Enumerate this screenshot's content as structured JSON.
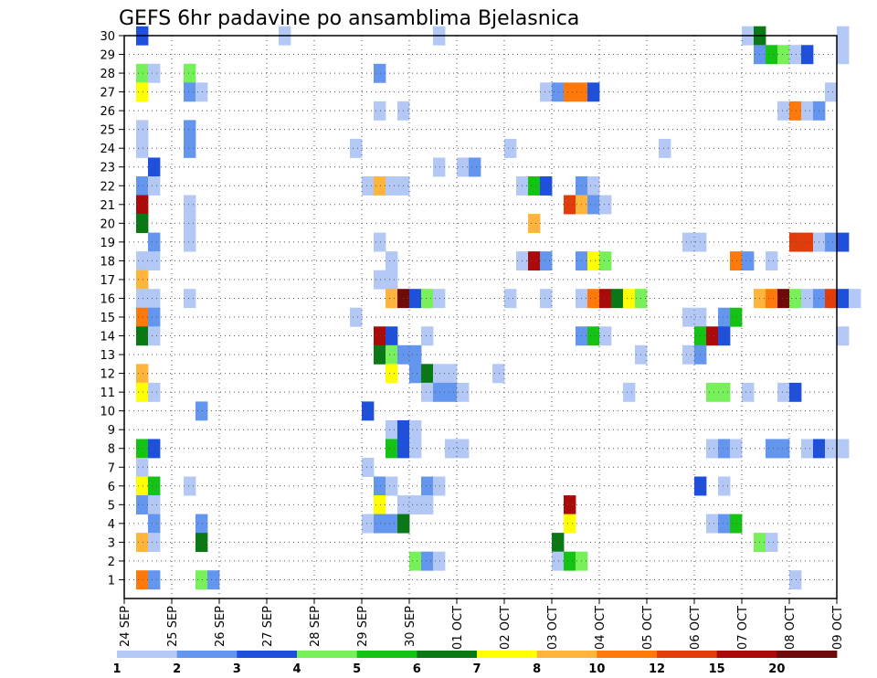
{
  "chart_data": {
    "type": "heatmap",
    "title": "GEFS 6hr padavine po ansamblima Bjelasnica",
    "x_tick_labels": [
      "24 SEP",
      "25 SEP",
      "26 SEP",
      "27 SEP",
      "28 SEP",
      "29 SEP",
      "30 SEP",
      "01 OCT",
      "02 OCT",
      "03 OCT",
      "04 OCT",
      "05 OCT",
      "06 OCT",
      "07 OCT",
      "08 OCT",
      "09 OCT"
    ],
    "y_tick_labels": [
      "1",
      "2",
      "3",
      "4",
      "5",
      "6",
      "7",
      "8",
      "9",
      "10",
      "11",
      "12",
      "13",
      "14",
      "15",
      "16",
      "17",
      "18",
      "19",
      "20",
      "21",
      "22",
      "23",
      "24",
      "25",
      "26",
      "27",
      "28",
      "29",
      "30"
    ],
    "y_range": [
      0,
      30
    ],
    "steps_per_day": 4,
    "grid": true,
    "colorbar": {
      "levels": [
        "1",
        "2",
        "3",
        "4",
        "5",
        "6",
        "7",
        "8",
        "10",
        "12",
        "15",
        "20"
      ],
      "colors": [
        "#b4c8f5",
        "#6496f0",
        "#1e50dc",
        "#78f05a",
        "#14c314",
        "#0a7814",
        "#ffff00",
        "#ffb43c",
        "#ff780a",
        "#e13c0a",
        "#aa0a0a",
        "#6e0a0a"
      ]
    },
    "cells_legend": "each cell: [member, 6h-step index from 24 SEP 00, color class 0-11]",
    "cells": [
      [
        30,
        1,
        2
      ],
      [
        30,
        13,
        0
      ],
      [
        30,
        26,
        0
      ],
      [
        30,
        52,
        0
      ],
      [
        30,
        53,
        5
      ],
      [
        30,
        60,
        0
      ],
      [
        29,
        53,
        1
      ],
      [
        29,
        54,
        4
      ],
      [
        29,
        55,
        3
      ],
      [
        29,
        56,
        0
      ],
      [
        29,
        57,
        2
      ],
      [
        29,
        60,
        0
      ],
      [
        28,
        1,
        3
      ],
      [
        28,
        2,
        0
      ],
      [
        28,
        5,
        3
      ],
      [
        28,
        21,
        1
      ],
      [
        27,
        1,
        6
      ],
      [
        27,
        5,
        1
      ],
      [
        27,
        6,
        0
      ],
      [
        27,
        35,
        0
      ],
      [
        27,
        36,
        1
      ],
      [
        27,
        37,
        8
      ],
      [
        27,
        38,
        8
      ],
      [
        27,
        39,
        2
      ],
      [
        27,
        59,
        0
      ],
      [
        26,
        21,
        0
      ],
      [
        26,
        23,
        0
      ],
      [
        26,
        55,
        0
      ],
      [
        26,
        56,
        8
      ],
      [
        26,
        57,
        0
      ],
      [
        26,
        58,
        1
      ],
      [
        25,
        1,
        0
      ],
      [
        25,
        5,
        1
      ],
      [
        24,
        1,
        0
      ],
      [
        24,
        5,
        1
      ],
      [
        24,
        19,
        0
      ],
      [
        24,
        32,
        0
      ],
      [
        24,
        45,
        0
      ],
      [
        23,
        2,
        2
      ],
      [
        23,
        26,
        0
      ],
      [
        23,
        28,
        0
      ],
      [
        23,
        29,
        1
      ],
      [
        22,
        1,
        1
      ],
      [
        22,
        2,
        0
      ],
      [
        22,
        20,
        0
      ],
      [
        22,
        21,
        7
      ],
      [
        22,
        22,
        0
      ],
      [
        22,
        23,
        0
      ],
      [
        22,
        33,
        0
      ],
      [
        22,
        34,
        4
      ],
      [
        22,
        35,
        2
      ],
      [
        22,
        38,
        1
      ],
      [
        22,
        39,
        0
      ],
      [
        21,
        1,
        10
      ],
      [
        21,
        5,
        0
      ],
      [
        21,
        37,
        9
      ],
      [
        21,
        38,
        7
      ],
      [
        21,
        39,
        1
      ],
      [
        21,
        40,
        0
      ],
      [
        20,
        1,
        5
      ],
      [
        20,
        5,
        0
      ],
      [
        20,
        34,
        7
      ],
      [
        19,
        2,
        1
      ],
      [
        19,
        5,
        0
      ],
      [
        19,
        21,
        0
      ],
      [
        19,
        47,
        0
      ],
      [
        19,
        48,
        0
      ],
      [
        19,
        56,
        9
      ],
      [
        19,
        57,
        9
      ],
      [
        19,
        58,
        0
      ],
      [
        19,
        59,
        1
      ],
      [
        19,
        60,
        2
      ],
      [
        18,
        1,
        0
      ],
      [
        18,
        2,
        0
      ],
      [
        18,
        22,
        0
      ],
      [
        18,
        33,
        0
      ],
      [
        18,
        34,
        10
      ],
      [
        18,
        35,
        1
      ],
      [
        18,
        38,
        1
      ],
      [
        18,
        39,
        6
      ],
      [
        18,
        40,
        3
      ],
      [
        18,
        51,
        8
      ],
      [
        18,
        52,
        1
      ],
      [
        18,
        54,
        0
      ],
      [
        17,
        1,
        7
      ],
      [
        17,
        21,
        0
      ],
      [
        17,
        22,
        0
      ],
      [
        16,
        1,
        0
      ],
      [
        16,
        2,
        0
      ],
      [
        16,
        5,
        0
      ],
      [
        16,
        22,
        7
      ],
      [
        16,
        23,
        11
      ],
      [
        16,
        24,
        2
      ],
      [
        16,
        25,
        3
      ],
      [
        16,
        26,
        0
      ],
      [
        16,
        32,
        0
      ],
      [
        16,
        35,
        0
      ],
      [
        16,
        38,
        0
      ],
      [
        16,
        39,
        8
      ],
      [
        16,
        40,
        10
      ],
      [
        16,
        41,
        5
      ],
      [
        16,
        42,
        6
      ],
      [
        16,
        43,
        3
      ],
      [
        16,
        53,
        7
      ],
      [
        16,
        54,
        8
      ],
      [
        16,
        55,
        11
      ],
      [
        16,
        56,
        3
      ],
      [
        16,
        57,
        0
      ],
      [
        16,
        58,
        1
      ],
      [
        16,
        59,
        9
      ],
      [
        16,
        60,
        2
      ],
      [
        16,
        61,
        0
      ],
      [
        15,
        1,
        8
      ],
      [
        15,
        2,
        1
      ],
      [
        15,
        19,
        0
      ],
      [
        15,
        47,
        0
      ],
      [
        15,
        48,
        0
      ],
      [
        15,
        50,
        1
      ],
      [
        15,
        51,
        4
      ],
      [
        14,
        1,
        5
      ],
      [
        14,
        2,
        0
      ],
      [
        14,
        21,
        10
      ],
      [
        14,
        22,
        2
      ],
      [
        14,
        25,
        0
      ],
      [
        14,
        38,
        1
      ],
      [
        14,
        39,
        4
      ],
      [
        14,
        40,
        0
      ],
      [
        14,
        48,
        4
      ],
      [
        14,
        49,
        10
      ],
      [
        14,
        50,
        2
      ],
      [
        14,
        60,
        0
      ],
      [
        13,
        21,
        5
      ],
      [
        13,
        22,
        3
      ],
      [
        13,
        23,
        1
      ],
      [
        13,
        24,
        1
      ],
      [
        13,
        43,
        0
      ],
      [
        13,
        47,
        0
      ],
      [
        13,
        48,
        1
      ],
      [
        12,
        1,
        7
      ],
      [
        12,
        22,
        6
      ],
      [
        12,
        24,
        1
      ],
      [
        12,
        25,
        5
      ],
      [
        12,
        26,
        0
      ],
      [
        12,
        27,
        0
      ],
      [
        12,
        31,
        0
      ],
      [
        11,
        1,
        6
      ],
      [
        11,
        2,
        0
      ],
      [
        11,
        25,
        0
      ],
      [
        11,
        26,
        1
      ],
      [
        11,
        27,
        1
      ],
      [
        11,
        28,
        0
      ],
      [
        11,
        42,
        0
      ],
      [
        11,
        49,
        3
      ],
      [
        11,
        50,
        3
      ],
      [
        11,
        52,
        0
      ],
      [
        11,
        55,
        0
      ],
      [
        11,
        56,
        2
      ],
      [
        10,
        6,
        1
      ],
      [
        10,
        20,
        2
      ],
      [
        9,
        22,
        0
      ],
      [
        9,
        23,
        2
      ],
      [
        9,
        24,
        0
      ],
      [
        8,
        1,
        4
      ],
      [
        8,
        2,
        2
      ],
      [
        8,
        22,
        4
      ],
      [
        8,
        23,
        2
      ],
      [
        8,
        24,
        0
      ],
      [
        8,
        27,
        0
      ],
      [
        8,
        28,
        0
      ],
      [
        8,
        49,
        0
      ],
      [
        8,
        50,
        1
      ],
      [
        8,
        51,
        0
      ],
      [
        8,
        54,
        1
      ],
      [
        8,
        55,
        1
      ],
      [
        8,
        57,
        0
      ],
      [
        8,
        58,
        2
      ],
      [
        8,
        59,
        0
      ],
      [
        8,
        60,
        0
      ],
      [
        7,
        1,
        0
      ],
      [
        7,
        20,
        0
      ],
      [
        6,
        1,
        6
      ],
      [
        6,
        2,
        4
      ],
      [
        6,
        5,
        0
      ],
      [
        6,
        21,
        1
      ],
      [
        6,
        22,
        0
      ],
      [
        6,
        25,
        1
      ],
      [
        6,
        26,
        0
      ],
      [
        6,
        48,
        2
      ],
      [
        6,
        50,
        0
      ],
      [
        5,
        1,
        1
      ],
      [
        5,
        2,
        0
      ],
      [
        5,
        21,
        6
      ],
      [
        5,
        23,
        0
      ],
      [
        5,
        24,
        0
      ],
      [
        5,
        25,
        0
      ],
      [
        5,
        37,
        10
      ],
      [
        4,
        2,
        1
      ],
      [
        4,
        6,
        1
      ],
      [
        4,
        20,
        0
      ],
      [
        4,
        21,
        1
      ],
      [
        4,
        22,
        1
      ],
      [
        4,
        23,
        5
      ],
      [
        4,
        37,
        6
      ],
      [
        4,
        49,
        0
      ],
      [
        4,
        50,
        1
      ],
      [
        4,
        51,
        4
      ],
      [
        3,
        1,
        7
      ],
      [
        3,
        2,
        0
      ],
      [
        3,
        6,
        5
      ],
      [
        3,
        36,
        5
      ],
      [
        3,
        53,
        3
      ],
      [
        3,
        54,
        0
      ],
      [
        2,
        24,
        3
      ],
      [
        2,
        25,
        1
      ],
      [
        2,
        26,
        0
      ],
      [
        2,
        36,
        0
      ],
      [
        2,
        37,
        4
      ],
      [
        2,
        38,
        3
      ],
      [
        1,
        1,
        8
      ],
      [
        1,
        2,
        1
      ],
      [
        1,
        6,
        3
      ],
      [
        1,
        7,
        1
      ],
      [
        1,
        56,
        0
      ]
    ]
  }
}
